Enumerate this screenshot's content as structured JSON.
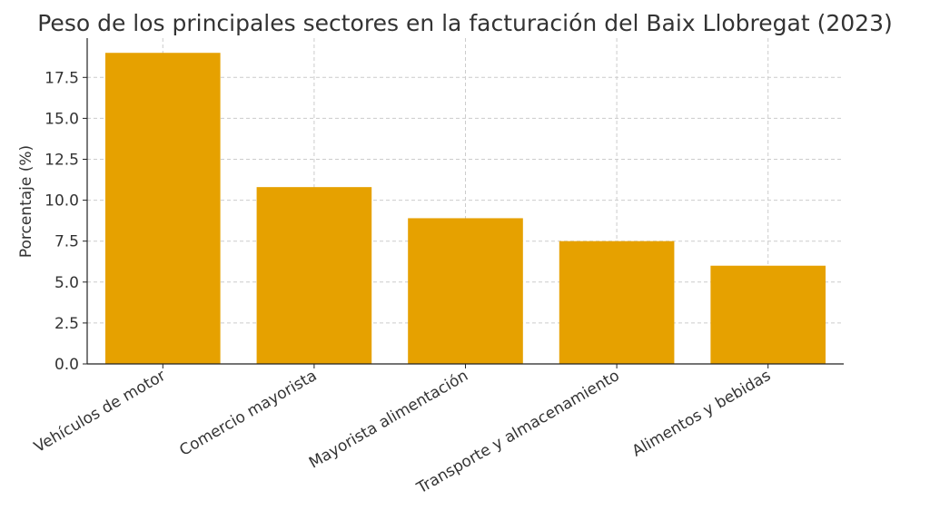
{
  "chart_data": {
    "type": "bar",
    "title": "Peso de los principales sectores en la facturación del Baix Llobregat (2023)",
    "xlabel": "",
    "ylabel": "Porcentaje (%)",
    "categories": [
      "Vehículos de motor",
      "Comercio mayorista",
      "Mayorista alimentación",
      "Transporte y almacenamiento",
      "Alimentos y bebidas"
    ],
    "values": [
      19.0,
      10.8,
      8.9,
      7.5,
      6.0
    ],
    "ylim": [
      0,
      19.9
    ],
    "yticks": [
      "0.0",
      "2.5",
      "5.0",
      "7.5",
      "10.0",
      "12.5",
      "15.0",
      "17.5"
    ],
    "grid": true,
    "bar_color": "#E6A100"
  }
}
